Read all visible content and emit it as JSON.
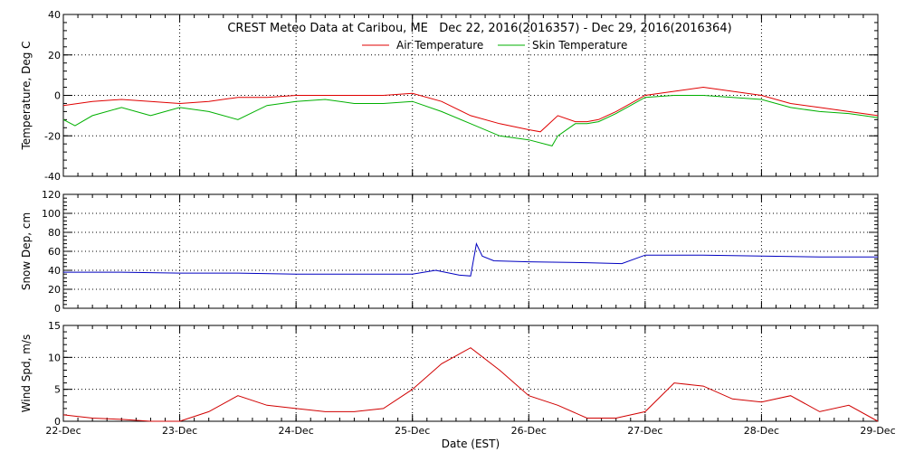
{
  "title": "CREST Meteo Data at Caribou, ME   Dec 22, 2016(2016357) - Dec 29, 2016(2016364)",
  "xlabel": "Date (EST)",
  "colors": {
    "air": "#e00000",
    "skin": "#00b000",
    "snow": "#0000c0",
    "wind": "#d00000",
    "axis": "#000000"
  },
  "chart_data": [
    {
      "type": "line",
      "panel": "temperature",
      "ylabel": "Temperature, Deg C",
      "ylim": [
        -40,
        40
      ],
      "yticks": [
        "40",
        "20",
        "0",
        "-20",
        "-40"
      ],
      "xlim": [
        0,
        7
      ],
      "grid": true,
      "legend": "top-center",
      "series": [
        {
          "name": "Air Temperature",
          "x": [
            0,
            0.25,
            0.5,
            0.75,
            1,
            1.25,
            1.5,
            1.75,
            2,
            2.25,
            2.5,
            2.75,
            3,
            3.25,
            3.5,
            3.75,
            4,
            4.1,
            4.25,
            4.4,
            4.5,
            4.6,
            4.75,
            5,
            5.25,
            5.5,
            5.75,
            6,
            6.25,
            6.5,
            6.75,
            7
          ],
          "y": [
            -5,
            -3,
            -2,
            -3,
            -4,
            -3,
            -1,
            -1,
            0,
            0,
            0,
            0,
            1,
            -3,
            -10,
            -14,
            -17,
            -18,
            -10,
            -13,
            -13,
            -12,
            -8,
            0,
            2,
            4,
            2,
            0,
            -4,
            -6,
            -8,
            -10
          ]
        },
        {
          "name": "Skin Temperature",
          "x": [
            0,
            0.1,
            0.25,
            0.5,
            0.75,
            1,
            1.25,
            1.5,
            1.75,
            2,
            2.25,
            2.5,
            2.75,
            3,
            3.25,
            3.5,
            3.75,
            4,
            4.2,
            4.25,
            4.4,
            4.5,
            4.6,
            4.75,
            5,
            5.25,
            5.5,
            5.75,
            6,
            6.25,
            6.5,
            6.75,
            7
          ],
          "y": [
            -12,
            -15,
            -10,
            -6,
            -10,
            -6,
            -8,
            -12,
            -5,
            -3,
            -2,
            -4,
            -4,
            -3,
            -8,
            -14,
            -20,
            -22,
            -25,
            -20,
            -14,
            -14,
            -13,
            -9,
            -1,
            0,
            0,
            -1,
            -2,
            -6,
            -8,
            -9,
            -11
          ]
        }
      ]
    },
    {
      "type": "line",
      "panel": "snow",
      "ylabel": "Snow Dep, cm",
      "ylim": [
        0,
        120
      ],
      "yticks": [
        "120",
        "100",
        "80",
        "60",
        "40",
        "20",
        "0"
      ],
      "xlim": [
        0,
        7
      ],
      "grid": true,
      "series": [
        {
          "x": [
            0,
            0.5,
            1,
            1.5,
            2,
            2.5,
            3,
            3.2,
            3.4,
            3.5,
            3.55,
            3.6,
            3.7,
            4,
            4.5,
            4.8,
            5,
            5.5,
            6,
            6.5,
            7
          ],
          "y": [
            38,
            38,
            37,
            37,
            36,
            36,
            36,
            40,
            35,
            34,
            68,
            55,
            50,
            49,
            48,
            47,
            56,
            56,
            55,
            54,
            54
          ]
        }
      ]
    },
    {
      "type": "line",
      "panel": "wind",
      "ylabel": "Wind Spd, m/s",
      "ylim": [
        0,
        15
      ],
      "yticks": [
        "15",
        "10",
        "5",
        "0"
      ],
      "xlim": [
        0,
        7
      ],
      "grid": true,
      "series": [
        {
          "x": [
            0,
            0.25,
            0.5,
            0.75,
            1,
            1.25,
            1.5,
            1.75,
            2,
            2.25,
            2.5,
            2.75,
            3,
            3.25,
            3.5,
            3.75,
            4,
            4.25,
            4.5,
            4.75,
            5,
            5.25,
            5.5,
            5.75,
            6,
            6.25,
            6.5,
            6.75,
            7
          ],
          "y": [
            1,
            0.5,
            0.3,
            0,
            0,
            1.5,
            4,
            2.5,
            2,
            1.5,
            1.5,
            2,
            5,
            9,
            11.5,
            8,
            4,
            2.5,
            0.5,
            0.5,
            1.5,
            6,
            5.5,
            3.5,
            3,
            4,
            1.5,
            2.5,
            0
          ]
        }
      ]
    }
  ],
  "xticks": [
    "22-Dec",
    "23-Dec",
    "24-Dec",
    "25-Dec",
    "26-Dec",
    "27-Dec",
    "28-Dec",
    "29-Dec"
  ]
}
